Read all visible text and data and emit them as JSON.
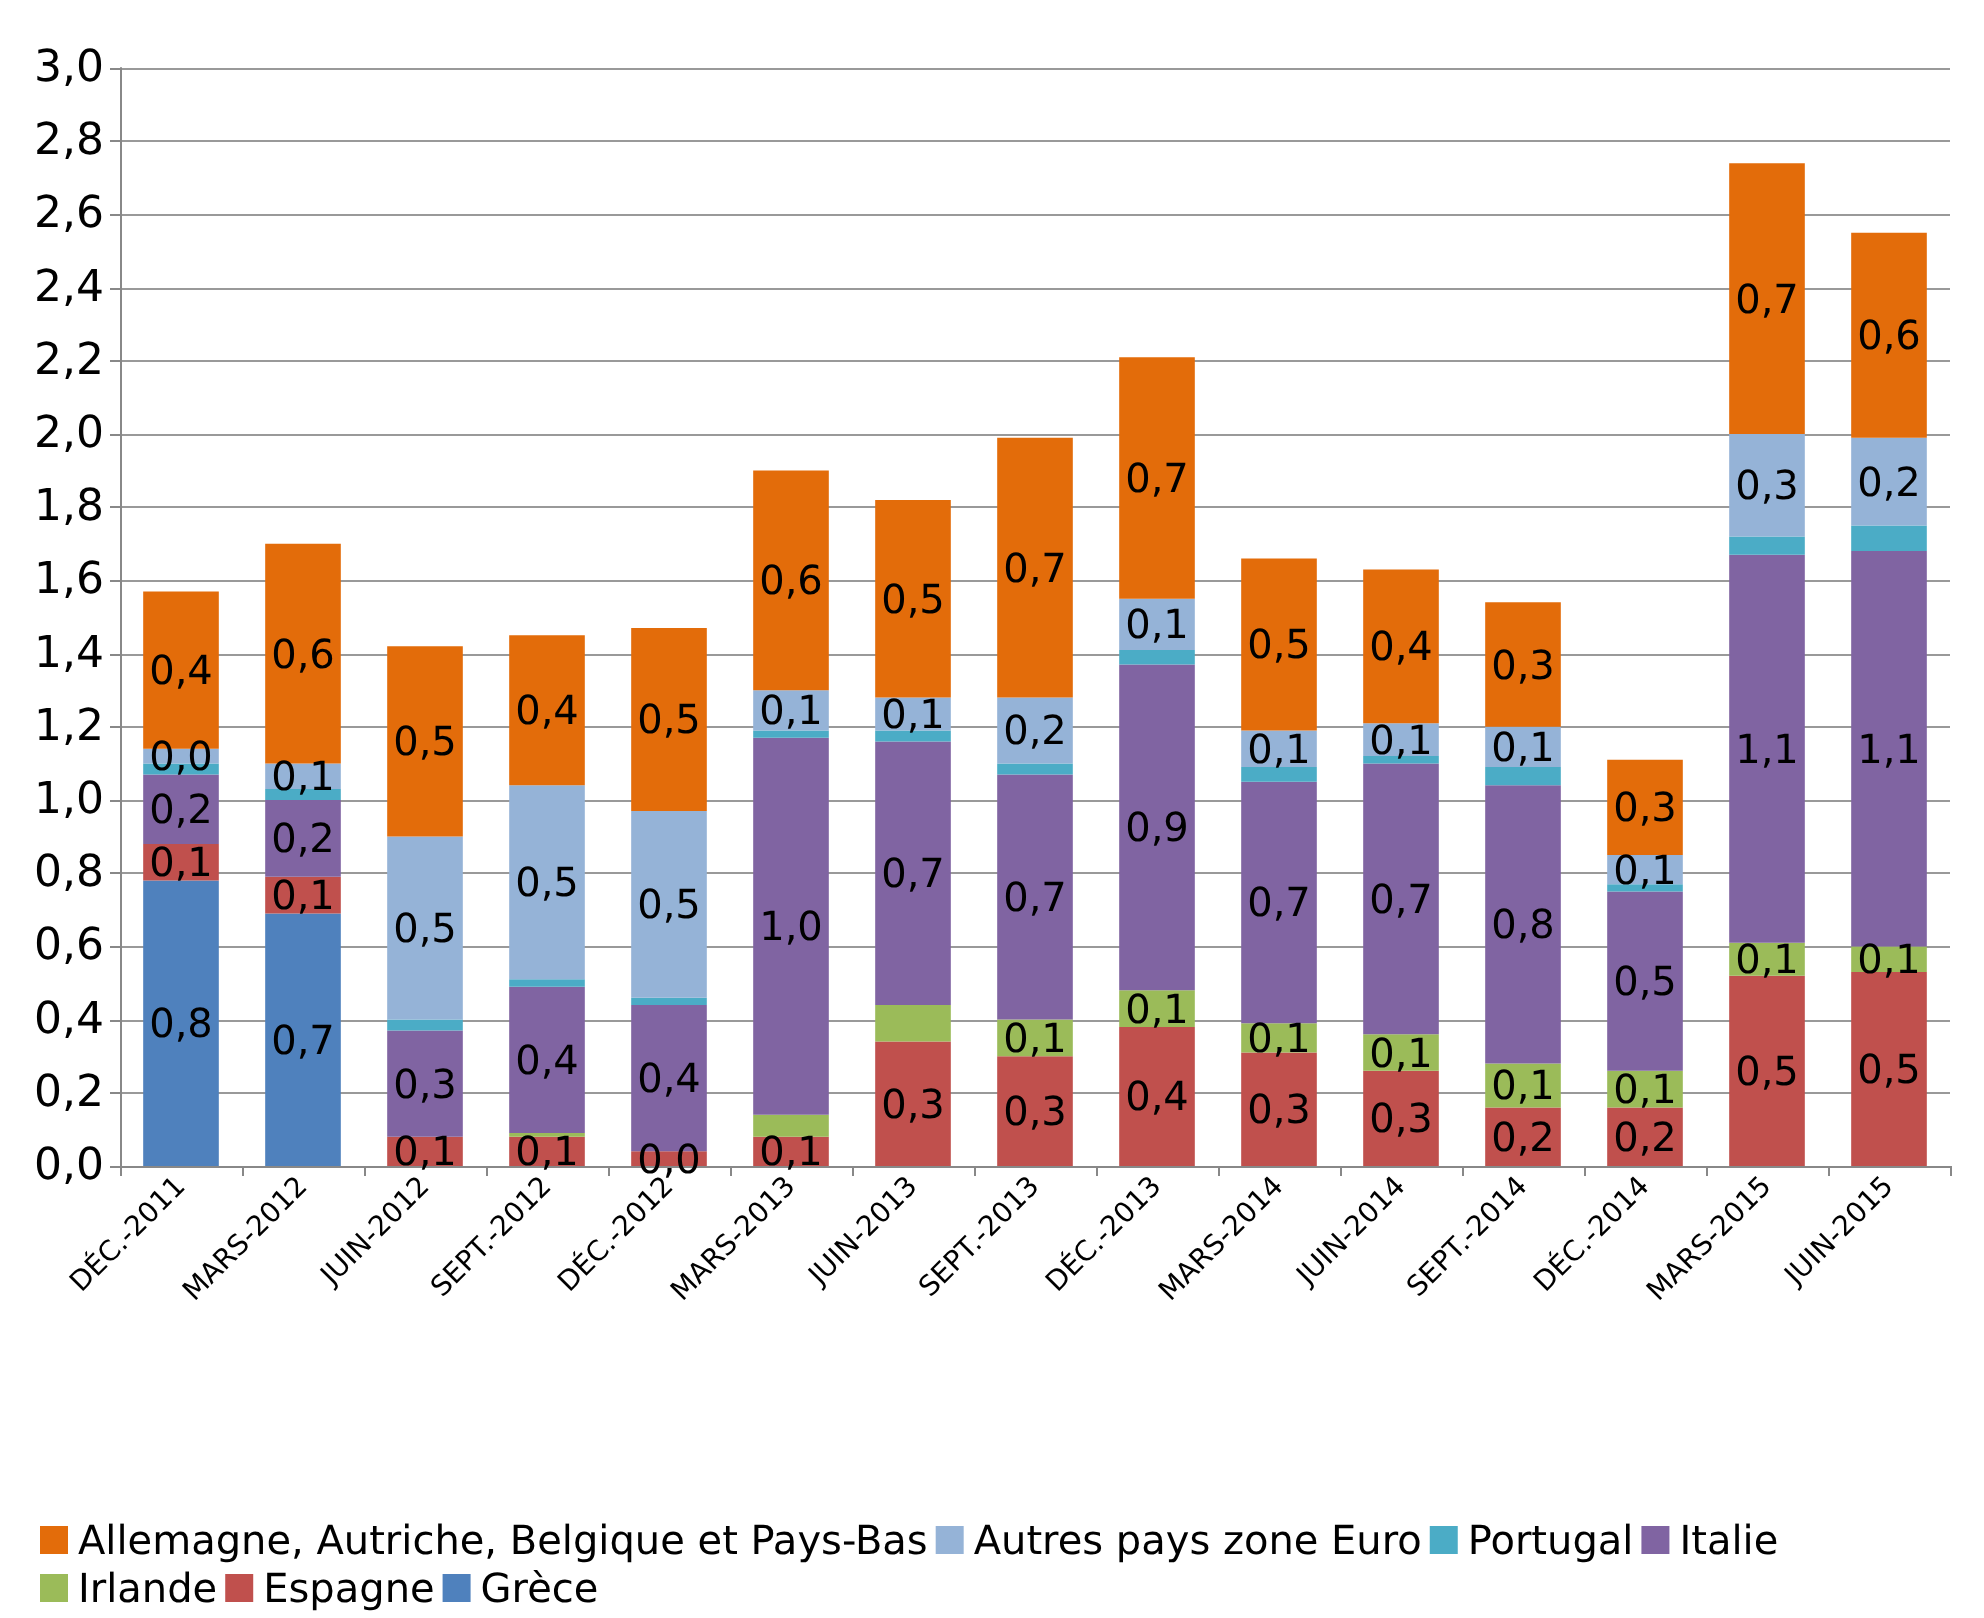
{
  "chart_data": {
    "type": "bar",
    "stacked": true,
    "grid": "y",
    "legend": "bottom",
    "categories": [
      "DÉC.-2011",
      "MARS-2012",
      "JUIN-2012",
      "SEPT.-2012",
      "DÉC.-2012",
      "MARS-2013",
      "JUIN-2013",
      "SEPT.-2013",
      "DÉC.-2013",
      "MARS-2014",
      "JUIN-2014",
      "SEPT.-2014",
      "DÉC.-2014",
      "MARS-2015",
      "JUIN-2015"
    ],
    "ylim": [
      0,
      3
    ],
    "yticks": [
      {
        "value": 0,
        "label": "0,0"
      },
      {
        "value": 0.2,
        "label": "0,2"
      },
      {
        "value": 0.4,
        "label": "0,4"
      },
      {
        "value": 0.6,
        "label": "0,6"
      },
      {
        "value": 0.8,
        "label": "0,8"
      },
      {
        "value": 1,
        "label": "1,0"
      },
      {
        "value": 1.2,
        "label": "1,2"
      },
      {
        "value": 1.4,
        "label": "1,4"
      },
      {
        "value": 1.6,
        "label": "1,6"
      },
      {
        "value": 1.8,
        "label": "1,8"
      },
      {
        "value": 2,
        "label": "2,0"
      },
      {
        "value": 2.2,
        "label": "2,2"
      },
      {
        "value": 2.4,
        "label": "2,4"
      },
      {
        "value": 2.6,
        "label": "2,6"
      },
      {
        "value": 2.8,
        "label": "2,8"
      },
      {
        "value": 3,
        "label": "3,0"
      }
    ],
    "series": [
      {
        "name": "Grèce",
        "color": "#4f81bd",
        "values": [
          0.78,
          0.69,
          0,
          0,
          0,
          0,
          0,
          0,
          0,
          0,
          0,
          0,
          0,
          0,
          0
        ],
        "value_labels": [
          "0,8",
          "0,7",
          null,
          null,
          null,
          null,
          null,
          null,
          null,
          null,
          null,
          null,
          null,
          null,
          null
        ]
      },
      {
        "name": "Espagne",
        "color": "#c0504d",
        "values": [
          0.1,
          0.1,
          0.08,
          0.08,
          0.04,
          0.08,
          0.34,
          0.3,
          0.38,
          0.31,
          0.26,
          0.16,
          0.16,
          0.52,
          0.53
        ],
        "value_labels": [
          "0,1",
          "0,1",
          "0,1",
          "0,1",
          "0,0",
          "0,1",
          "0,3",
          "0,3",
          "0,4",
          "0,3",
          "0,3",
          "0,2",
          "0,2",
          "0,5",
          "0,5"
        ]
      },
      {
        "name": "Irlande",
        "color": "#9bbb59",
        "values": [
          0,
          0,
          0,
          0.01,
          0,
          0.06,
          0.1,
          0.1,
          0.1,
          0.08,
          0.1,
          0.12,
          0.1,
          0.09,
          0.07
        ],
        "value_labels": [
          null,
          null,
          null,
          null,
          null,
          null,
          null,
          "0,1",
          "0,1",
          "0,1",
          "0,1",
          "0,1",
          "0,1",
          "0,1",
          "0,1"
        ]
      },
      {
        "name": "Italie",
        "color": "#8064a2",
        "values": [
          0.19,
          0.21,
          0.29,
          0.4,
          0.4,
          1.03,
          0.72,
          0.67,
          0.89,
          0.66,
          0.74,
          0.76,
          0.49,
          1.06,
          1.08
        ],
        "value_labels": [
          "0,2",
          "0,2",
          "0,3",
          "0,4",
          "0,4",
          "1,0",
          "0,7",
          "0,7",
          "0,9",
          "0,7",
          "0,7",
          "0,8",
          "0,5",
          "1,1",
          "1,1"
        ]
      },
      {
        "name": "Portugal",
        "color": "#4bacc6",
        "values": [
          0.03,
          0.03,
          0.03,
          0.02,
          0.02,
          0.02,
          0.03,
          0.03,
          0.04,
          0.04,
          0.02,
          0.05,
          0.02,
          0.05,
          0.07
        ]
      },
      {
        "name": "Autres pays zone Euro",
        "color": "#95b3d7",
        "values": [
          0.04,
          0.07,
          0.5,
          0.53,
          0.51,
          0.11,
          0.09,
          0.18,
          0.14,
          0.1,
          0.09,
          0.11,
          0.08,
          0.28,
          0.24
        ],
        "value_labels": [
          "0,0",
          "0,1",
          "0,5",
          "0,5",
          "0,5",
          "0,1",
          "0,1",
          "0,2",
          "0,1",
          "0,1",
          "0,1",
          "0,1",
          "0,1",
          "0,3",
          "0,2"
        ]
      },
      {
        "name": "Allemagne, Autriche, Belgique et Pays-Bas",
        "color": "#e36c0a",
        "values": [
          0.43,
          0.6,
          0.52,
          0.41,
          0.5,
          0.6,
          0.54,
          0.71,
          0.66,
          0.47,
          0.42,
          0.34,
          0.26,
          0.74,
          0.56
        ],
        "value_labels": [
          "0,4",
          "0,6",
          "0,5",
          "0,4",
          "0,5",
          "0,6",
          "0,5",
          "0,7",
          "0,7",
          "0,5",
          "0,4",
          "0,3",
          "0,3",
          "0,7",
          "0,6"
        ]
      }
    ]
  }
}
